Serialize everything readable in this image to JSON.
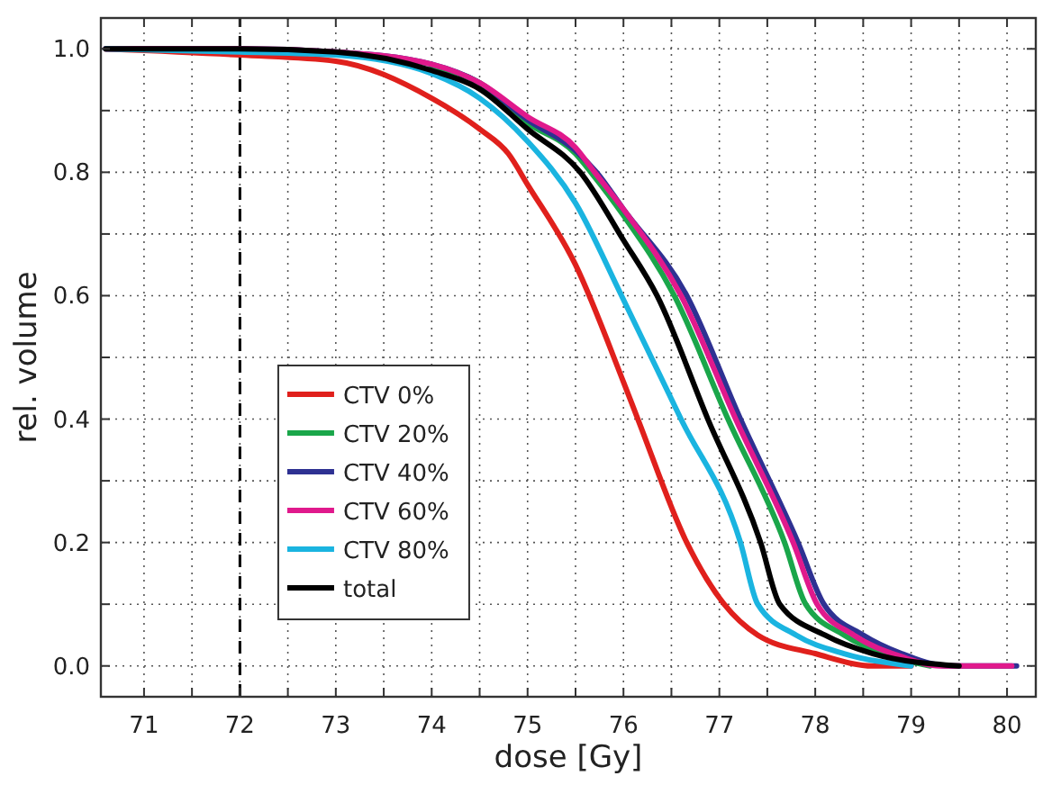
{
  "chart_data": {
    "type": "line",
    "xlabel": "dose [Gy]",
    "ylabel": "rel. volume",
    "xlim": [
      70.55,
      80.3
    ],
    "ylim": [
      -0.05,
      1.05
    ],
    "xticks": [
      71,
      {
        "value": 71.5,
        "label": null
      },
      72,
      {
        "value": 72.5,
        "label": null
      },
      73,
      {
        "value": 73.5,
        "label": null
      },
      74,
      {
        "value": 74.5,
        "label": null
      },
      75,
      {
        "value": 75.5,
        "label": null
      },
      76,
      {
        "value": 76.5,
        "label": null
      },
      77,
      {
        "value": 77.5,
        "label": null
      },
      78,
      {
        "value": 78.5,
        "label": null
      },
      79,
      {
        "value": 79.5,
        "label": null
      },
      80
    ],
    "yticks": [
      {
        "value": 0,
        "label": "0.0"
      },
      {
        "value": 0.1,
        "label": null
      },
      {
        "value": 0.2,
        "label": "0.2"
      },
      {
        "value": 0.3,
        "label": null
      },
      {
        "value": 0.4,
        "label": "0.4"
      },
      {
        "value": 0.5,
        "label": null
      },
      {
        "value": 0.6,
        "label": "0.6"
      },
      {
        "value": 0.7,
        "label": null
      },
      {
        "value": 0.8,
        "label": "0.8"
      },
      {
        "value": 0.9,
        "label": null
      },
      {
        "value": 1.0,
        "label": "1.0"
      }
    ],
    "grid": true,
    "legend": "center left",
    "line_style": "solid",
    "marker": "none",
    "ref_lines": [
      {
        "axis": "x",
        "value": 72,
        "line_style": "dashed",
        "color": "#000000"
      }
    ],
    "series": [
      {
        "name": "CTV 0%",
        "color": "#e0201c",
        "x": [
          70.6,
          72,
          73,
          74,
          74.5,
          74.8,
          75,
          75.5,
          76,
          76.15,
          76.66,
          77.05,
          77.4,
          78,
          78.6,
          79
        ],
        "values": [
          1,
          0.99,
          0.98,
          0.92,
          0.87,
          0.83,
          0.78,
          0.65,
          0.46,
          0.4,
          0.2,
          0.1,
          0.05,
          0.02,
          0,
          0
        ]
      },
      {
        "name": "CTV 20%",
        "color": "#1aa64a",
        "x": [
          74,
          74.5,
          75,
          75.5,
          75.66,
          76,
          76.53,
          77.09,
          77.68,
          77.9,
          78.3,
          78.8,
          79.2
        ],
        "values": [
          0.97,
          0.945,
          0.88,
          0.83,
          0.8,
          0.73,
          0.6,
          0.4,
          0.2,
          0.1,
          0.05,
          0.015,
          0
        ]
      },
      {
        "name": "CTV 40%",
        "color": "#2e3192",
        "x": [
          70.6,
          72,
          73,
          74,
          74.5,
          75,
          75.5,
          75.72,
          76,
          76.66,
          77.22,
          77.82,
          78.09,
          78.5,
          78.9,
          79.4,
          80.1
        ],
        "values": [
          1,
          1,
          0.995,
          0.975,
          0.945,
          0.885,
          0.835,
          0.8,
          0.74,
          0.6,
          0.4,
          0.2,
          0.1,
          0.05,
          0.02,
          0,
          0
        ]
      },
      {
        "name": "CTV 60%",
        "color": "#e0198c",
        "x": [
          70.6,
          72,
          73,
          74,
          74.5,
          75,
          75.5,
          75.7,
          76,
          76.6,
          77.17,
          77.77,
          78.02,
          78.4,
          78.9,
          79.3,
          80.05
        ],
        "values": [
          1,
          1,
          0.995,
          0.975,
          0.945,
          0.89,
          0.84,
          0.8,
          0.74,
          0.6,
          0.4,
          0.2,
          0.1,
          0.05,
          0.015,
          0,
          0
        ]
      },
      {
        "name": "CTV 80%",
        "color": "#1ab4e0",
        "x": [
          70.6,
          72,
          73,
          74,
          74.5,
          75,
          75.5,
          75.98,
          76.6,
          77.22,
          77.4,
          77.8,
          78.3,
          79
        ],
        "values": [
          1,
          0.995,
          0.99,
          0.96,
          0.92,
          0.85,
          0.75,
          0.6,
          0.4,
          0.2,
          0.1,
          0.05,
          0.02,
          0
        ]
      },
      {
        "name": "total",
        "color": "#000000",
        "x": [
          70.6,
          72,
          73,
          74,
          74.5,
          75,
          75.55,
          76,
          76.35,
          76.88,
          77.43,
          77.63,
          78.1,
          78.6,
          79.5
        ],
        "values": [
          1,
          1,
          0.995,
          0.965,
          0.935,
          0.87,
          0.8,
          0.69,
          0.6,
          0.4,
          0.2,
          0.1,
          0.05,
          0.02,
          0
        ]
      }
    ]
  }
}
